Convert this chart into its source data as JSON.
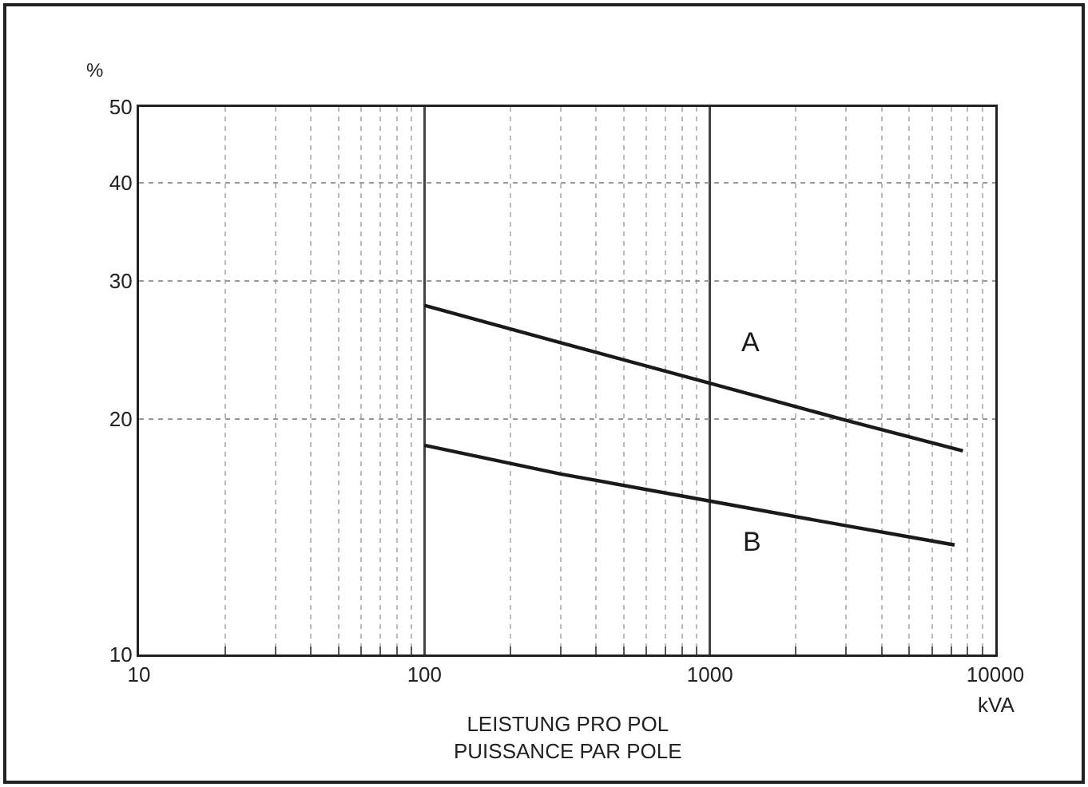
{
  "chart_data": {
    "type": "line",
    "xlabel": "LEISTUNG PRO POL\nPUISSANCE PAR POLE",
    "ylabel": "%",
    "log": "xy",
    "grid": true,
    "legend": false,
    "marker": "none",
    "line_style": "solid",
    "xlim": [
      10,
      10000
    ],
    "xticks": [
      10,
      100,
      1000,
      10000
    ],
    "ylim": [
      10,
      50
    ],
    "yticks": [
      10,
      20,
      30,
      40,
      50
    ],
    "series": [
      {
        "name": "A",
        "color": "#1a1a1a",
        "x": [
          100,
          300,
          1000,
          3000,
          7700
        ],
        "values": [
          27.9,
          25.0,
          22.2,
          19.9,
          18.2
        ]
      },
      {
        "name": "B",
        "color": "#1a1a1a",
        "x": [
          100,
          300,
          1000,
          3000,
          7200
        ],
        "values": [
          18.5,
          17.0,
          15.7,
          14.6,
          13.8
        ]
      }
    ],
    "annotations": [
      "kVA"
    ]
  }
}
